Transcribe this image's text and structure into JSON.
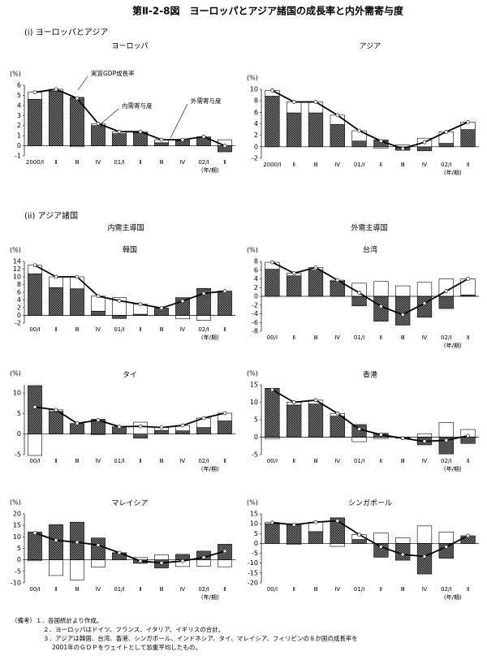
{
  "title": "第Ⅱ-2-8図　ヨーロッパとアジア諸国の成長率と内外需寄与度",
  "section_1": "(i) ヨーロッパとアジア",
  "section_2": "(ii) アジア諸国",
  "group_left": "内需主導国",
  "group_right": "外需主導国",
  "notes": [
    "（備考）１．各国統計より作成。",
    "２．ヨーロッパはドイツ、フランス、イタリア、イギリスの合計。",
    "３．アジアは韓国、台湾、香港、シンガポール、インドネシア、タイ、マレイシア、フィリピンの８か国の成長率を",
    "2001年のＧＤＰをウェイトとして加重平均したもの。"
  ],
  "chart_data": [
    {
      "type": "bar",
      "title": "ヨーロッパ",
      "y_unit": "(%)",
      "x_unit": "(年/期)",
      "categories": [
        "2000/Ⅰ",
        "Ⅱ",
        "Ⅲ",
        "Ⅳ",
        "01/Ⅰ",
        "Ⅱ",
        "Ⅲ",
        "Ⅳ",
        "02/Ⅰ",
        "Ⅱ"
      ],
      "ylim": [
        -1,
        6
      ],
      "yticks": [
        -1,
        0,
        1,
        2,
        3,
        4,
        5,
        6
      ],
      "series": [
        {
          "name": "内需寄与度",
          "type": "bar",
          "color": "#7a7a7a",
          "hatch": true,
          "values": [
            4.6,
            5.4,
            4.8,
            2.0,
            1.2,
            1.3,
            0.3,
            0.5,
            0.8,
            -0.6
          ]
        },
        {
          "name": "外需寄与度",
          "type": "bar",
          "color": "#ffffff",
          "values": [
            0.7,
            0.2,
            -0.1,
            0.2,
            0.2,
            0.1,
            0.3,
            0.1,
            0.1,
            0.6
          ]
        },
        {
          "name": "実質GDP成長率",
          "type": "line",
          "color": "#000000",
          "values": [
            5.3,
            5.6,
            4.7,
            2.2,
            1.4,
            1.4,
            0.6,
            0.6,
            0.9,
            0.0
          ]
        }
      ]
    },
    {
      "type": "bar",
      "title": "アジア",
      "y_unit": "(%)",
      "x_unit": "(年/期)",
      "categories": [
        "2000/Ⅰ",
        "Ⅱ",
        "Ⅲ",
        "Ⅳ",
        "01/Ⅰ",
        "Ⅱ",
        "Ⅲ",
        "Ⅳ",
        "02/Ⅰ",
        "Ⅱ"
      ],
      "ylim": [
        -2,
        10
      ],
      "yticks": [
        -2,
        0,
        2,
        4,
        6,
        8,
        10
      ],
      "series": [
        {
          "type": "bar",
          "color": "#7a7a7a",
          "hatch": true,
          "values": [
            8.8,
            5.9,
            5.9,
            3.9,
            1.0,
            1.2,
            -0.6,
            -0.7,
            0.6,
            3.0
          ]
        },
        {
          "type": "bar",
          "color": "#ffffff",
          "values": [
            1.0,
            1.9,
            1.9,
            1.6,
            1.8,
            -0.2,
            0.3,
            1.5,
            2.0,
            1.3
          ]
        },
        {
          "type": "line",
          "color": "#000000",
          "values": [
            9.8,
            7.8,
            7.8,
            5.5,
            2.8,
            1.0,
            -0.3,
            0.8,
            2.6,
            4.3
          ]
        }
      ]
    },
    {
      "type": "bar",
      "title": "韓国",
      "y_unit": "(%)",
      "x_unit": "(年/期)",
      "categories": [
        "00/Ⅰ",
        "Ⅱ",
        "Ⅲ",
        "Ⅳ",
        "01/Ⅰ",
        "Ⅱ",
        "Ⅲ",
        "Ⅳ",
        "02/Ⅰ",
        "Ⅱ"
      ],
      "ylim": [
        -2,
        14
      ],
      "yticks": [
        -2,
        0,
        2,
        4,
        6,
        8,
        10,
        12,
        14
      ],
      "series": [
        {
          "type": "bar",
          "color": "#7a7a7a",
          "hatch": true,
          "values": [
            10.8,
            7.2,
            6.9,
            1.1,
            -0.8,
            0.3,
            1.9,
            4.6,
            7.0,
            6.3
          ]
        },
        {
          "type": "bar",
          "color": "#ffffff",
          "values": [
            2.2,
            2.8,
            3.1,
            3.9,
            4.6,
            2.6,
            0.0,
            -0.9,
            -1.3,
            0.0
          ]
        },
        {
          "type": "line",
          "color": "#000000",
          "values": [
            13.0,
            10.0,
            10.0,
            5.0,
            3.8,
            2.9,
            1.9,
            3.7,
            5.7,
            6.3
          ]
        }
      ]
    },
    {
      "type": "bar",
      "title": "台湾",
      "y_unit": "(%)",
      "x_unit": "(年/期)",
      "categories": [
        "00/Ⅰ",
        "Ⅱ",
        "Ⅲ",
        "Ⅳ",
        "01/Ⅰ",
        "Ⅱ",
        "Ⅲ",
        "Ⅳ",
        "02/Ⅰ",
        "Ⅱ"
      ],
      "ylim": [
        -8,
        8
      ],
      "yticks": [
        -8,
        -6,
        -4,
        -2,
        0,
        2,
        4,
        6,
        8
      ],
      "series": [
        {
          "type": "bar",
          "color": "#7a7a7a",
          "hatch": true,
          "values": [
            6.2,
            4.7,
            6.0,
            3.5,
            -2.2,
            -5.7,
            -6.6,
            -4.8,
            -2.8,
            0.3
          ]
        },
        {
          "type": "bar",
          "color": "#ffffff",
          "values": [
            1.6,
            0.6,
            0.6,
            0.2,
            3.0,
            3.4,
            2.4,
            3.2,
            4.0,
            3.7
          ]
        },
        {
          "type": "line",
          "color": "#000000",
          "values": [
            7.8,
            5.3,
            6.6,
            3.7,
            0.8,
            -2.3,
            -4.2,
            -1.6,
            1.2,
            4.0
          ]
        }
      ]
    },
    {
      "type": "bar",
      "title": "タイ",
      "y_unit": "(%)",
      "x_unit": "(年/期)",
      "categories": [
        "00/Ⅰ",
        "Ⅱ",
        "Ⅲ",
        "Ⅳ",
        "01/Ⅰ",
        "Ⅱ",
        "Ⅲ",
        "Ⅳ",
        "02/Ⅰ",
        "Ⅱ"
      ],
      "ylim": [
        -5,
        12
      ],
      "yticks": [
        -5,
        0,
        5,
        10
      ],
      "series": [
        {
          "type": "bar",
          "color": "#7a7a7a",
          "hatch": true,
          "values": [
            11.8,
            5.5,
            2.4,
            3.6,
            1.8,
            -1.0,
            0.9,
            0.8,
            1.6,
            3.2
          ]
        },
        {
          "type": "bar",
          "color": "#ffffff",
          "values": [
            -5.2,
            0.4,
            0.2,
            -0.2,
            0.0,
            2.9,
            0.7,
            1.3,
            2.3,
            1.9
          ]
        },
        {
          "type": "line",
          "color": "#000000",
          "values": [
            6.6,
            5.9,
            2.6,
            3.4,
            1.8,
            1.9,
            1.6,
            2.1,
            3.9,
            5.1
          ]
        }
      ]
    },
    {
      "type": "bar",
      "title": "香港",
      "y_unit": "(%)",
      "x_unit": "(年/期)",
      "categories": [
        "00/Ⅰ",
        "Ⅱ",
        "Ⅲ",
        "Ⅳ",
        "01/Ⅰ",
        "Ⅱ",
        "Ⅲ",
        "Ⅳ",
        "02/Ⅰ",
        "Ⅱ"
      ],
      "ylim": [
        -5,
        15
      ],
      "yticks": [
        -5,
        0,
        5,
        10,
        15
      ],
      "series": [
        {
          "type": "bar",
          "color": "#7a7a7a",
          "hatch": true,
          "values": [
            14.0,
            9.2,
            9.5,
            6.0,
            3.6,
            1.1,
            -0.3,
            -2.2,
            -4.8,
            -1.8
          ]
        },
        {
          "type": "bar",
          "color": "#ffffff",
          "values": [
            -0.4,
            0.8,
            1.1,
            0.8,
            -1.3,
            -0.4,
            0.0,
            1.0,
            4.2,
            2.2
          ]
        },
        {
          "type": "line",
          "color": "#000000",
          "values": [
            13.6,
            10.0,
            10.6,
            6.8,
            2.3,
            0.7,
            -0.3,
            -1.2,
            -0.9,
            0.4
          ]
        }
      ]
    },
    {
      "type": "bar",
      "title": "マレイシア",
      "y_unit": "(%)",
      "x_unit": "(年/期)",
      "categories": [
        "00/Ⅰ",
        "Ⅱ",
        "Ⅲ",
        "Ⅳ",
        "01/Ⅰ",
        "Ⅱ",
        "Ⅲ",
        "Ⅳ",
        "02/Ⅰ",
        "Ⅱ"
      ],
      "ylim": [
        -10,
        20
      ],
      "yticks": [
        -10,
        -5,
        0,
        5,
        10,
        15,
        20
      ],
      "series": [
        {
          "type": "bar",
          "color": "#7a7a7a",
          "hatch": true,
          "values": [
            12.1,
            15.3,
            16.4,
            9.5,
            3.0,
            -1.5,
            -3.5,
            2.4,
            3.8,
            6.8
          ]
        },
        {
          "type": "bar",
          "color": "#ffffff",
          "values": [
            -0.4,
            -6.8,
            -8.7,
            -3.1,
            0.1,
            1.0,
            2.2,
            -2.9,
            -2.7,
            -3.0
          ]
        },
        {
          "type": "line",
          "color": "#000000",
          "values": [
            11.7,
            8.5,
            7.7,
            6.4,
            3.1,
            -0.5,
            -1.3,
            -0.5,
            1.1,
            3.8
          ]
        }
      ]
    },
    {
      "type": "bar",
      "title": "シンガポール",
      "y_unit": "(%)",
      "x_unit": "(年/期)",
      "categories": [
        "00/Ⅰ",
        "Ⅱ",
        "Ⅲ",
        "Ⅳ",
        "01/Ⅰ",
        "Ⅱ",
        "Ⅲ",
        "Ⅳ",
        "02/Ⅰ",
        "Ⅱ"
      ],
      "ylim": [
        -20,
        15
      ],
      "yticks": [
        -20,
        -15,
        -10,
        -5,
        0,
        5,
        10,
        15
      ],
      "series": [
        {
          "type": "bar",
          "color": "#7a7a7a",
          "hatch": true,
          "values": [
            10.0,
            10.0,
            6.0,
            13.0,
            2.0,
            -7.0,
            -8.5,
            -15.5,
            -7.5,
            3.5
          ]
        },
        {
          "type": "bar",
          "color": "#ffffff",
          "values": [
            0.6,
            -0.5,
            4.8,
            -1.5,
            2.5,
            5.3,
            2.9,
            8.9,
            5.8,
            0.4
          ]
        },
        {
          "type": "line",
          "color": "#000000",
          "values": [
            10.6,
            9.5,
            10.8,
            11.5,
            4.5,
            -1.7,
            -5.6,
            -6.6,
            -1.7,
            3.9
          ]
        }
      ]
    }
  ]
}
